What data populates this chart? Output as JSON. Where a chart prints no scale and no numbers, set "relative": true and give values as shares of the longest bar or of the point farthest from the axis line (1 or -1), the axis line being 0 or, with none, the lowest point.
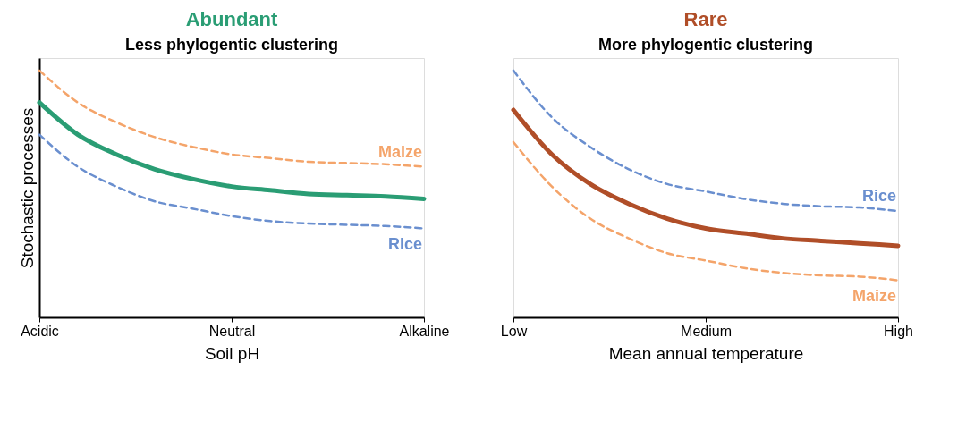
{
  "chart_data": [
    {
      "type": "line",
      "title": "Abundant",
      "subtitle": "Less phylogentic clustering",
      "xlabel": "Soil pH",
      "ylabel": "Stochastic processes",
      "relative": true,
      "categories": [
        "Acidic",
        null,
        null,
        null,
        null,
        "Neutral",
        null,
        null,
        null,
        null,
        "Alkaline"
      ],
      "series": [
        {
          "name": "Maize",
          "color": "#f4a46a",
          "line_style": "dashed",
          "values": [
            1.0,
            0.87,
            0.79,
            0.73,
            0.69,
            0.66,
            0.645,
            0.63,
            0.625,
            0.62,
            0.61
          ]
        },
        {
          "color": "#2a9d74",
          "line_style": "solid",
          "values": [
            0.87,
            0.74,
            0.66,
            0.6,
            0.56,
            0.53,
            0.515,
            0.5,
            0.495,
            0.49,
            0.48
          ]
        },
        {
          "name": "Rice",
          "color": "#6a8fcf",
          "line_style": "dashed",
          "values": [
            0.74,
            0.61,
            0.53,
            0.47,
            0.44,
            0.41,
            0.39,
            0.38,
            0.375,
            0.37,
            0.36
          ]
        }
      ]
    },
    {
      "type": "line",
      "title": "Rare",
      "subtitle": "More phylogentic clustering",
      "xlabel": "Mean annual temperature",
      "relative": true,
      "categories": [
        "Low",
        null,
        null,
        null,
        null,
        "Medium",
        null,
        null,
        null,
        null,
        "High"
      ],
      "series": [
        {
          "name": "Rice",
          "color": "#6a8fcf",
          "line_style": "dashed",
          "values": [
            1.0,
            0.81,
            0.69,
            0.6,
            0.54,
            0.51,
            0.48,
            0.46,
            0.45,
            0.445,
            0.43
          ]
        },
        {
          "color": "#b04e28",
          "line_style": "solid",
          "values": [
            0.84,
            0.66,
            0.54,
            0.46,
            0.4,
            0.36,
            0.34,
            0.32,
            0.31,
            0.3,
            0.29
          ]
        },
        {
          "name": "Maize",
          "color": "#f4a46a",
          "line_style": "dashed",
          "values": [
            0.71,
            0.53,
            0.4,
            0.32,
            0.26,
            0.23,
            0.2,
            0.18,
            0.17,
            0.165,
            0.15
          ]
        }
      ]
    }
  ]
}
